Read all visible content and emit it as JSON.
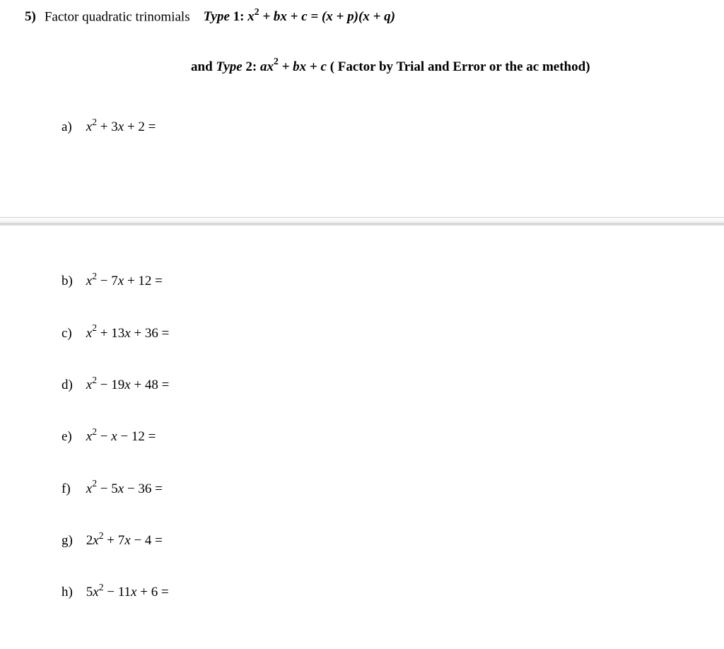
{
  "question": {
    "number": "5)",
    "intro": "Factor quadratic trinomials",
    "type1_label": "Type ",
    "type1_num": "1: ",
    "type1_formula_lhs": "x",
    "type1_formula_rest": " + bx + c = (x + p)(x + q)",
    "type2_prefix": "and ",
    "type2_label": "Type ",
    "type2_num": "2: ",
    "type2_formula": "ax",
    "type2_rest": " + bx + c",
    "type2_note": " ( Factor by Trial and Error or the ac method)"
  },
  "items": {
    "a": {
      "label": "a)",
      "expr_pre": "x",
      "expr_post": " + 3x + 2 ="
    },
    "b": {
      "label": "b)",
      "expr_pre": "x",
      "expr_post": " − 7x + 12 ="
    },
    "c": {
      "label": "c)",
      "expr_pre": "x",
      "expr_post": " + 13x + 36 ="
    },
    "d": {
      "label": "d)",
      "expr_pre": "x",
      "expr_post": " − 19x + 48 ="
    },
    "e": {
      "label": "e)",
      "expr_pre": "x",
      "expr_post": " − x − 12 ="
    },
    "f": {
      "label": "f)",
      "expr_pre": "x",
      "expr_post": " − 5x − 36 ="
    },
    "g": {
      "label": "g)",
      "expr_pre": "2x",
      "expr_post": " + 7x − 4 ="
    },
    "h": {
      "label": "h)",
      "expr_pre": "5x",
      "expr_post": " − 11x + 6 ="
    }
  },
  "sup2": "2"
}
